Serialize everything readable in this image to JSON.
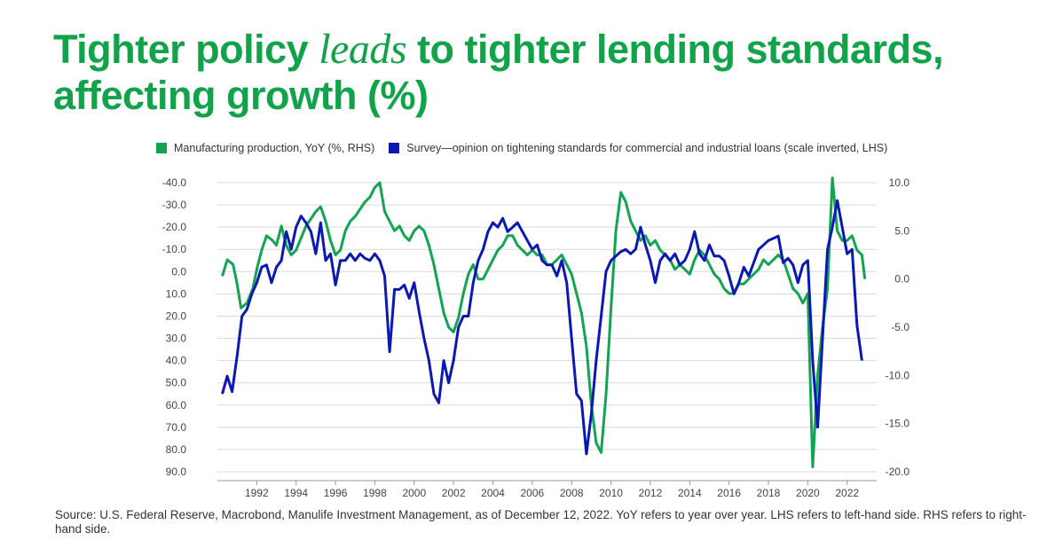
{
  "title": {
    "part1": "Tighter policy ",
    "emphasis": "leads",
    "part2": " to tighter lending standards, affecting growth (%)"
  },
  "colors": {
    "title": "#10a34a",
    "green": "#12a453",
    "blue": "#0a18b4",
    "grid": "#d9d9d9",
    "axis_text": "#444444"
  },
  "source": "Source: U.S. Federal Reserve, Macrobond, Manulife Investment Management, as of December 12, 2022. YoY refers to year over year. LHS refers to left-hand side. RHS refers to right-hand side.",
  "chart_data": {
    "type": "line",
    "legend": [
      {
        "label": "Manufacturing production, YoY (%, RHS)",
        "color": "#12a453"
      },
      {
        "label": "Survey—opinion on tightening standards for commercial and industrial loans (scale inverted, LHS)",
        "color": "#0a18b4"
      }
    ],
    "x_ticks": [
      "1992",
      "1994",
      "1996",
      "1998",
      "2000",
      "2002",
      "2004",
      "2006",
      "2008",
      "2010",
      "2012",
      "2014",
      "2016",
      "2018",
      "2020",
      "2022"
    ],
    "x_range": [
      1990,
      2023.5
    ],
    "left_axis": {
      "ticks": [
        "-40.0",
        "-30.0",
        "-20.0",
        "-10.0",
        "0.0",
        "10.0",
        "20.0",
        "30.0",
        "40.0",
        "50.0",
        "60.0",
        "70.0",
        "80.0",
        "90.0"
      ],
      "range": [
        -40,
        90
      ],
      "inverted": true
    },
    "right_axis": {
      "ticks": [
        "10.0",
        "5.0",
        "0.0",
        "-5.0",
        "-10.0",
        "-15.0",
        "-20.0"
      ],
      "range": [
        -20,
        10
      ]
    },
    "series": [
      {
        "name": "Manufacturing production, YoY (%, RHS)",
        "axis": "right",
        "color": "#12a453",
        "points": [
          [
            1990.25,
            0.3
          ],
          [
            1990.5,
            2.0
          ],
          [
            1990.8,
            1.5
          ],
          [
            1991.0,
            -0.5
          ],
          [
            1991.2,
            -3.0
          ],
          [
            1991.5,
            -2.5
          ],
          [
            1991.8,
            -1.0
          ],
          [
            1992.0,
            1.0
          ],
          [
            1992.25,
            3.0
          ],
          [
            1992.5,
            4.5
          ],
          [
            1992.8,
            4.0
          ],
          [
            1993.0,
            3.5
          ],
          [
            1993.25,
            5.5
          ],
          [
            1993.5,
            3.5
          ],
          [
            1993.75,
            2.5
          ],
          [
            1994.0,
            3.0
          ],
          [
            1994.5,
            5.5
          ],
          [
            1995.0,
            7.0
          ],
          [
            1995.25,
            7.5
          ],
          [
            1995.5,
            6.0
          ],
          [
            1995.75,
            4.0
          ],
          [
            1996.0,
            2.5
          ],
          [
            1996.25,
            3.0
          ],
          [
            1996.5,
            5.0
          ],
          [
            1996.75,
            6.0
          ],
          [
            1997.0,
            6.5
          ],
          [
            1997.5,
            8.0
          ],
          [
            1997.75,
            8.5
          ],
          [
            1998.0,
            9.5
          ],
          [
            1998.25,
            10.0
          ],
          [
            1998.5,
            7.0
          ],
          [
            1998.75,
            6.0
          ],
          [
            1999.0,
            5.0
          ],
          [
            1999.25,
            5.5
          ],
          [
            1999.5,
            4.5
          ],
          [
            1999.75,
            4.0
          ],
          [
            2000.0,
            5.0
          ],
          [
            2000.25,
            5.5
          ],
          [
            2000.5,
            5.0
          ],
          [
            2000.75,
            3.5
          ],
          [
            2001.0,
            1.5
          ],
          [
            2001.25,
            -1.0
          ],
          [
            2001.5,
            -3.5
          ],
          [
            2001.75,
            -5.0
          ],
          [
            2002.0,
            -5.5
          ],
          [
            2002.25,
            -4.0
          ],
          [
            2002.5,
            -1.5
          ],
          [
            2002.75,
            0.5
          ],
          [
            2003.0,
            1.5
          ],
          [
            2003.25,
            0.0
          ],
          [
            2003.5,
            0.0
          ],
          [
            2003.75,
            1.0
          ],
          [
            2004.0,
            2.0
          ],
          [
            2004.25,
            3.0
          ],
          [
            2004.5,
            3.5
          ],
          [
            2004.75,
            4.5
          ],
          [
            2005.0,
            4.5
          ],
          [
            2005.25,
            3.5
          ],
          [
            2005.5,
            3.0
          ],
          [
            2005.75,
            2.5
          ],
          [
            2006.0,
            3.0
          ],
          [
            2006.25,
            2.5
          ],
          [
            2006.5,
            2.5
          ],
          [
            2006.75,
            1.5
          ],
          [
            2007.0,
            1.5
          ],
          [
            2007.25,
            2.0
          ],
          [
            2007.5,
            2.5
          ],
          [
            2007.75,
            1.5
          ],
          [
            2008.0,
            0.5
          ],
          [
            2008.25,
            -1.5
          ],
          [
            2008.5,
            -3.5
          ],
          [
            2008.75,
            -7.0
          ],
          [
            2009.0,
            -13.0
          ],
          [
            2009.25,
            -17.0
          ],
          [
            2009.5,
            -18.0
          ],
          [
            2009.75,
            -12.0
          ],
          [
            2010.0,
            -3.0
          ],
          [
            2010.25,
            5.0
          ],
          [
            2010.5,
            9.0
          ],
          [
            2010.75,
            8.0
          ],
          [
            2011.0,
            6.0
          ],
          [
            2011.25,
            5.0
          ],
          [
            2011.5,
            4.0
          ],
          [
            2011.75,
            4.5
          ],
          [
            2012.0,
            3.5
          ],
          [
            2012.25,
            4.0
          ],
          [
            2012.5,
            3.0
          ],
          [
            2012.75,
            2.5
          ],
          [
            2013.0,
            2.0
          ],
          [
            2013.25,
            1.0
          ],
          [
            2013.5,
            1.5
          ],
          [
            2013.75,
            1.0
          ],
          [
            2014.0,
            0.5
          ],
          [
            2014.25,
            2.0
          ],
          [
            2014.5,
            3.0
          ],
          [
            2014.75,
            2.5
          ],
          [
            2015.0,
            1.5
          ],
          [
            2015.25,
            0.5
          ],
          [
            2015.5,
            0.0
          ],
          [
            2015.75,
            -1.0
          ],
          [
            2016.0,
            -1.5
          ],
          [
            2016.25,
            -1.5
          ],
          [
            2016.5,
            -0.5
          ],
          [
            2016.75,
            -0.5
          ],
          [
            2017.0,
            0.0
          ],
          [
            2017.25,
            0.5
          ],
          [
            2017.5,
            1.0
          ],
          [
            2017.75,
            2.0
          ],
          [
            2018.0,
            1.5
          ],
          [
            2018.25,
            2.0
          ],
          [
            2018.5,
            2.5
          ],
          [
            2018.75,
            2.0
          ],
          [
            2019.0,
            0.5
          ],
          [
            2019.25,
            -1.0
          ],
          [
            2019.5,
            -1.5
          ],
          [
            2019.75,
            -2.5
          ],
          [
            2020.0,
            -1.5
          ],
          [
            2020.25,
            -19.5
          ],
          [
            2020.5,
            -10.0
          ],
          [
            2020.75,
            -5.0
          ],
          [
            2021.0,
            -1.0
          ],
          [
            2021.25,
            10.5
          ],
          [
            2021.5,
            5.0
          ],
          [
            2021.75,
            4.0
          ],
          [
            2022.0,
            4.0
          ],
          [
            2022.25,
            4.5
          ],
          [
            2022.5,
            3.0
          ],
          [
            2022.75,
            2.5
          ],
          [
            2022.9,
            0.0
          ]
        ]
      },
      {
        "name": "Survey—opinion on tightening standards (scale inverted, LHS)",
        "axis": "left",
        "color": "#0a18b4",
        "points": [
          [
            1990.25,
            55
          ],
          [
            1990.5,
            47
          ],
          [
            1990.75,
            54
          ],
          [
            1991.0,
            38
          ],
          [
            1991.25,
            20
          ],
          [
            1991.5,
            17
          ],
          [
            1991.75,
            10
          ],
          [
            1992.0,
            5
          ],
          [
            1992.25,
            -2
          ],
          [
            1992.5,
            -3
          ],
          [
            1992.75,
            5
          ],
          [
            1993.0,
            -2
          ],
          [
            1993.25,
            -5
          ],
          [
            1993.5,
            -18
          ],
          [
            1993.75,
            -10
          ],
          [
            1994.0,
            -20
          ],
          [
            1994.25,
            -25
          ],
          [
            1994.5,
            -22
          ],
          [
            1994.75,
            -18
          ],
          [
            1995.0,
            -8
          ],
          [
            1995.25,
            -22
          ],
          [
            1995.5,
            -5
          ],
          [
            1995.75,
            -8
          ],
          [
            1996.0,
            6
          ],
          [
            1996.25,
            -5
          ],
          [
            1996.5,
            -5
          ],
          [
            1996.75,
            -8
          ],
          [
            1997.0,
            -5
          ],
          [
            1997.25,
            -8
          ],
          [
            1997.5,
            -6
          ],
          [
            1997.75,
            -5
          ],
          [
            1998.0,
            -8
          ],
          [
            1998.25,
            -5
          ],
          [
            1998.5,
            2
          ],
          [
            1998.75,
            36
          ],
          [
            1999.0,
            8
          ],
          [
            1999.25,
            8
          ],
          [
            1999.5,
            6
          ],
          [
            1999.75,
            12
          ],
          [
            2000.0,
            5
          ],
          [
            2000.25,
            18
          ],
          [
            2000.5,
            30
          ],
          [
            2000.75,
            40
          ],
          [
            2001.0,
            55
          ],
          [
            2001.25,
            59
          ],
          [
            2001.5,
            40
          ],
          [
            2001.75,
            50
          ],
          [
            2002.0,
            40
          ],
          [
            2002.25,
            25
          ],
          [
            2002.5,
            20
          ],
          [
            2002.75,
            20
          ],
          [
            2003.0,
            5
          ],
          [
            2003.25,
            -5
          ],
          [
            2003.5,
            -10
          ],
          [
            2003.75,
            -18
          ],
          [
            2004.0,
            -22
          ],
          [
            2004.25,
            -20
          ],
          [
            2004.5,
            -24
          ],
          [
            2004.75,
            -18
          ],
          [
            2005.0,
            -20
          ],
          [
            2005.25,
            -22
          ],
          [
            2005.5,
            -18
          ],
          [
            2005.75,
            -14
          ],
          [
            2006.0,
            -10
          ],
          [
            2006.25,
            -12
          ],
          [
            2006.5,
            -5
          ],
          [
            2006.75,
            -3
          ],
          [
            2007.0,
            -3
          ],
          [
            2007.25,
            2
          ],
          [
            2007.5,
            -5
          ],
          [
            2007.75,
            5
          ],
          [
            2008.0,
            30
          ],
          [
            2008.25,
            55
          ],
          [
            2008.5,
            58
          ],
          [
            2008.75,
            82
          ],
          [
            2009.0,
            64
          ],
          [
            2009.25,
            40
          ],
          [
            2009.5,
            20
          ],
          [
            2009.75,
            0
          ],
          [
            2010.0,
            -5
          ],
          [
            2010.25,
            -7
          ],
          [
            2010.5,
            -9
          ],
          [
            2010.75,
            -10
          ],
          [
            2011.0,
            -8
          ],
          [
            2011.25,
            -10
          ],
          [
            2011.5,
            -20
          ],
          [
            2011.75,
            -12
          ],
          [
            2012.0,
            -5
          ],
          [
            2012.25,
            5
          ],
          [
            2012.5,
            -5
          ],
          [
            2012.75,
            -8
          ],
          [
            2013.0,
            -5
          ],
          [
            2013.25,
            -8
          ],
          [
            2013.5,
            -3
          ],
          [
            2013.75,
            -5
          ],
          [
            2014.0,
            -10
          ],
          [
            2014.25,
            -18
          ],
          [
            2014.5,
            -8
          ],
          [
            2014.75,
            -5
          ],
          [
            2015.0,
            -12
          ],
          [
            2015.25,
            -7
          ],
          [
            2015.5,
            -7
          ],
          [
            2015.75,
            -5
          ],
          [
            2016.0,
            2
          ],
          [
            2016.25,
            10
          ],
          [
            2016.5,
            5
          ],
          [
            2016.75,
            -2
          ],
          [
            2017.0,
            2
          ],
          [
            2017.25,
            -4
          ],
          [
            2017.5,
            -10
          ],
          [
            2017.75,
            -12
          ],
          [
            2018.0,
            -14
          ],
          [
            2018.25,
            -15
          ],
          [
            2018.5,
            -16
          ],
          [
            2018.75,
            -4
          ],
          [
            2019.0,
            -6
          ],
          [
            2019.25,
            -3
          ],
          [
            2019.5,
            5
          ],
          [
            2019.75,
            -3
          ],
          [
            2020.0,
            -5
          ],
          [
            2020.25,
            40
          ],
          [
            2020.5,
            70
          ],
          [
            2020.75,
            30
          ],
          [
            2021.0,
            -10
          ],
          [
            2021.25,
            -20
          ],
          [
            2021.5,
            -32
          ],
          [
            2021.75,
            -20
          ],
          [
            2022.0,
            -8
          ],
          [
            2022.25,
            -10
          ],
          [
            2022.5,
            24
          ],
          [
            2022.75,
            40
          ]
        ]
      }
    ]
  }
}
